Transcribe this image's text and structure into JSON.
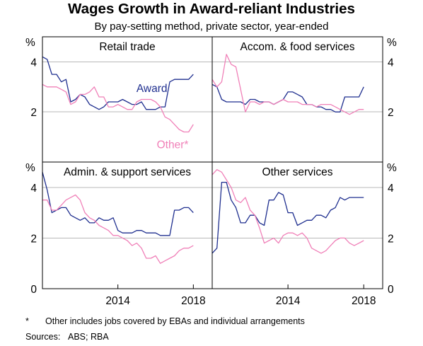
{
  "title": "Wages Growth in Award-reliant Industries",
  "subtitle": "By pay-setting method, private sector, year-ended",
  "footnote": {
    "marker": "*",
    "text": "Other includes jobs covered by EBAs and individual arrangements"
  },
  "sources": {
    "label": "Sources:",
    "text": "ABS; RBA"
  },
  "colors": {
    "award": "#1f2f8f",
    "other": "#f080b8",
    "axis": "#000000",
    "grid": "#b8b8b8"
  },
  "chart_data": {
    "type": "line",
    "y_unit": "%",
    "ylim": [
      0,
      5
    ],
    "yticks": [
      0,
      2,
      4
    ],
    "ytick_labels": [
      "0",
      "2",
      "4"
    ],
    "xticks": [
      2014,
      2018
    ],
    "xtick_labels": [
      "2014",
      "2018"
    ],
    "x_range": [
      2010.0,
      2019.0
    ],
    "grid": true,
    "panels": [
      {
        "title": "Retail trade",
        "labels": [
          {
            "series": "Award",
            "text": "Award",
            "x": 2015.8,
            "y": 2.8
          },
          {
            "series": "Other*",
            "text": "Other*",
            "x": 2016.9,
            "y": 0.55
          }
        ],
        "series": [
          {
            "name": "Award",
            "x": [
              2010.0,
              2010.25,
              2010.5,
              2010.75,
              2011.0,
              2011.25,
              2011.5,
              2011.75,
              2012.0,
              2012.25,
              2012.5,
              2012.75,
              2013.0,
              2013.25,
              2013.5,
              2013.75,
              2014.0,
              2014.25,
              2014.5,
              2014.75,
              2015.0,
              2015.25,
              2015.5,
              2015.75,
              2016.0,
              2016.25,
              2016.5,
              2016.75,
              2017.0,
              2017.25,
              2017.5,
              2017.75,
              2018.0
            ],
            "y": [
              4.2,
              4.1,
              3.5,
              3.5,
              3.2,
              3.3,
              2.4,
              2.5,
              2.7,
              2.6,
              2.3,
              2.2,
              2.1,
              2.2,
              2.4,
              2.4,
              2.4,
              2.5,
              2.4,
              2.3,
              2.3,
              2.4,
              2.1,
              2.1,
              2.1,
              2.2,
              2.2,
              3.2,
              3.3,
              3.3,
              3.3,
              3.3,
              3.5
            ]
          },
          {
            "name": "Other*",
            "x": [
              2010.0,
              2010.25,
              2010.5,
              2010.75,
              2011.0,
              2011.25,
              2011.5,
              2011.75,
              2012.0,
              2012.25,
              2012.5,
              2012.75,
              2013.0,
              2013.25,
              2013.5,
              2013.75,
              2014.0,
              2014.25,
              2014.5,
              2014.75,
              2015.0,
              2015.25,
              2015.5,
              2015.75,
              2016.0,
              2016.25,
              2016.5,
              2016.75,
              2017.0,
              2017.25,
              2017.5,
              2017.75,
              2018.0
            ],
            "y": [
              3.1,
              3.0,
              3.0,
              3.0,
              2.9,
              2.8,
              2.3,
              2.4,
              2.7,
              2.7,
              2.8,
              3.0,
              2.6,
              2.6,
              2.2,
              2.2,
              2.3,
              2.2,
              2.1,
              2.1,
              2.4,
              2.5,
              2.5,
              2.5,
              2.4,
              2.2,
              1.8,
              1.7,
              1.5,
              1.3,
              1.2,
              1.2,
              1.5
            ]
          }
        ]
      },
      {
        "title": "Accom. & food services",
        "series": [
          {
            "name": "Award",
            "x": [
              2010.0,
              2010.25,
              2010.5,
              2010.75,
              2011.0,
              2011.25,
              2011.5,
              2011.75,
              2012.0,
              2012.25,
              2012.5,
              2012.75,
              2013.0,
              2013.25,
              2013.5,
              2013.75,
              2014.0,
              2014.25,
              2014.5,
              2014.75,
              2015.0,
              2015.25,
              2015.5,
              2015.75,
              2016.0,
              2016.25,
              2016.5,
              2016.75,
              2017.0,
              2017.25,
              2017.5,
              2017.75,
              2018.0
            ],
            "y": [
              3.1,
              3.0,
              2.5,
              2.4,
              2.4,
              2.4,
              2.4,
              2.3,
              2.5,
              2.5,
              2.4,
              2.4,
              2.4,
              2.3,
              2.4,
              2.5,
              2.8,
              2.8,
              2.7,
              2.6,
              2.3,
              2.3,
              2.2,
              2.2,
              2.1,
              2.1,
              2.0,
              2.0,
              2.6,
              2.6,
              2.6,
              2.6,
              3.0
            ]
          },
          {
            "name": "Other*",
            "x": [
              2010.0,
              2010.25,
              2010.5,
              2010.75,
              2011.0,
              2011.25,
              2011.5,
              2011.75,
              2012.0,
              2012.25,
              2012.5,
              2012.75,
              2013.0,
              2013.25,
              2013.5,
              2013.75,
              2014.0,
              2014.25,
              2014.5,
              2014.75,
              2015.0,
              2015.25,
              2015.5,
              2015.75,
              2016.0,
              2016.25,
              2016.5,
              2016.75,
              2017.0,
              2017.25,
              2017.5,
              2017.75,
              2018.0
            ],
            "y": [
              3.3,
              3.0,
              3.2,
              4.3,
              3.9,
              3.8,
              2.9,
              2.0,
              2.4,
              2.4,
              2.3,
              2.4,
              2.4,
              2.3,
              2.4,
              2.5,
              2.4,
              2.4,
              2.4,
              2.3,
              2.3,
              2.3,
              2.2,
              2.3,
              2.3,
              2.3,
              2.2,
              2.1,
              2.0,
              1.9,
              2.0,
              2.1,
              2.1
            ]
          }
        ]
      },
      {
        "title": "Admin. & support services",
        "series": [
          {
            "name": "Award",
            "x": [
              2010.0,
              2010.25,
              2010.5,
              2010.75,
              2011.0,
              2011.25,
              2011.5,
              2011.75,
              2012.0,
              2012.25,
              2012.5,
              2012.75,
              2013.0,
              2013.25,
              2013.5,
              2013.75,
              2014.0,
              2014.25,
              2014.5,
              2014.75,
              2015.0,
              2015.25,
              2015.5,
              2015.75,
              2016.0,
              2016.25,
              2016.5,
              2016.75,
              2017.0,
              2017.25,
              2017.5,
              2017.75,
              2018.0
            ],
            "y": [
              4.6,
              3.9,
              3.0,
              3.1,
              3.2,
              3.2,
              2.9,
              2.8,
              2.7,
              2.8,
              2.6,
              2.6,
              2.8,
              2.7,
              2.7,
              2.8,
              2.3,
              2.2,
              2.2,
              2.2,
              2.3,
              2.3,
              2.2,
              2.2,
              2.2,
              2.1,
              2.1,
              2.1,
              3.1,
              3.1,
              3.2,
              3.2,
              3.0
            ]
          },
          {
            "name": "Other*",
            "x": [
              2010.0,
              2010.25,
              2010.5,
              2010.75,
              2011.0,
              2011.25,
              2011.5,
              2011.75,
              2012.0,
              2012.25,
              2012.5,
              2012.75,
              2013.0,
              2013.25,
              2013.5,
              2013.75,
              2014.0,
              2014.25,
              2014.5,
              2014.75,
              2015.0,
              2015.25,
              2015.5,
              2015.75,
              2016.0,
              2016.25,
              2016.5,
              2016.75,
              2017.0,
              2017.25,
              2017.5,
              2017.75,
              2018.0
            ],
            "y": [
              3.5,
              3.5,
              3.1,
              3.1,
              3.3,
              3.5,
              3.6,
              3.7,
              3.5,
              3.0,
              2.8,
              2.7,
              2.5,
              2.4,
              2.3,
              2.1,
              2.1,
              2.0,
              1.9,
              1.7,
              1.8,
              1.6,
              1.2,
              1.2,
              1.3,
              1.0,
              1.1,
              1.2,
              1.3,
              1.5,
              1.6,
              1.6,
              1.7
            ]
          }
        ]
      },
      {
        "title": "Other services",
        "series": [
          {
            "name": "Award",
            "x": [
              2010.0,
              2010.25,
              2010.5,
              2010.75,
              2011.0,
              2011.25,
              2011.5,
              2011.75,
              2012.0,
              2012.25,
              2012.5,
              2012.75,
              2013.0,
              2013.25,
              2013.5,
              2013.75,
              2014.0,
              2014.25,
              2014.5,
              2014.75,
              2015.0,
              2015.25,
              2015.5,
              2015.75,
              2016.0,
              2016.25,
              2016.5,
              2016.75,
              2017.0,
              2017.25,
              2017.5,
              2017.75,
              2018.0
            ],
            "y": [
              1.4,
              1.6,
              4.2,
              4.2,
              3.5,
              3.2,
              2.6,
              2.6,
              2.9,
              2.9,
              2.6,
              2.5,
              3.5,
              3.5,
              3.8,
              3.7,
              3.0,
              3.0,
              2.5,
              2.6,
              2.7,
              2.7,
              2.9,
              2.9,
              2.8,
              3.1,
              3.2,
              3.6,
              3.5,
              3.6,
              3.6,
              3.6,
              3.6
            ]
          },
          {
            "name": "Other*",
            "x": [
              2010.0,
              2010.25,
              2010.5,
              2010.75,
              2011.0,
              2011.25,
              2011.5,
              2011.75,
              2012.0,
              2012.25,
              2012.5,
              2012.75,
              2013.0,
              2013.25,
              2013.5,
              2013.75,
              2014.0,
              2014.25,
              2014.5,
              2014.75,
              2015.0,
              2015.25,
              2015.5,
              2015.75,
              2016.0,
              2016.25,
              2016.5,
              2016.75,
              2017.0,
              2017.25,
              2017.5,
              2017.75,
              2018.0
            ],
            "y": [
              4.5,
              4.7,
              4.6,
              4.3,
              4.0,
              3.5,
              3.4,
              3.6,
              3.1,
              2.9,
              2.4,
              1.8,
              1.9,
              2.0,
              1.8,
              2.1,
              2.2,
              2.2,
              2.1,
              2.2,
              2.0,
              1.6,
              1.5,
              1.4,
              1.5,
              1.7,
              1.9,
              2.0,
              2.0,
              1.8,
              1.7,
              1.8,
              1.9
            ]
          }
        ]
      }
    ]
  }
}
